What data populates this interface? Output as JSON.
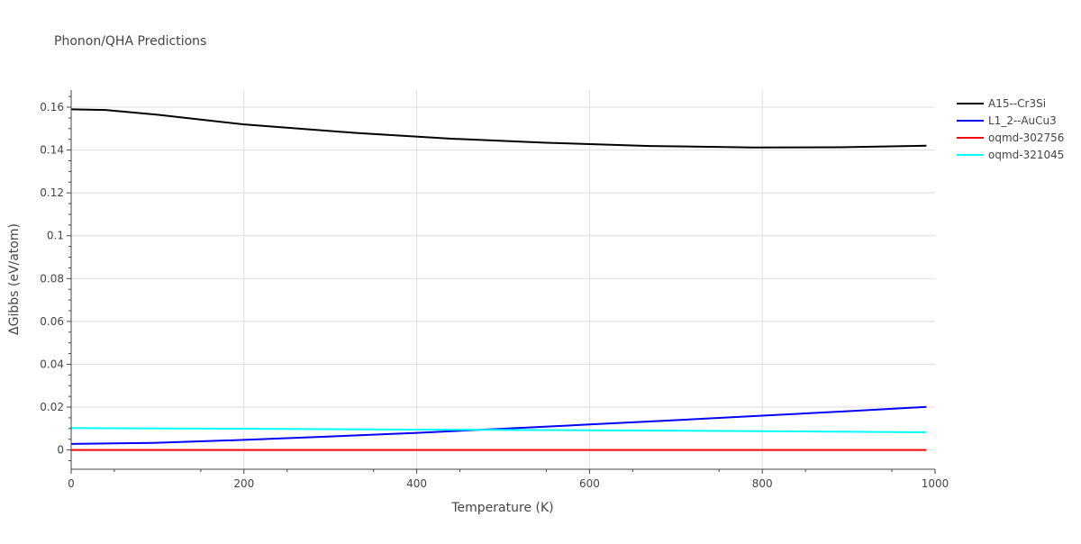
{
  "chart_data": {
    "type": "line",
    "title": "Phonon/QHA Predictions",
    "xlabel": "Temperature (K)",
    "ylabel": "ΔGibbs (eV/atom)",
    "xlim": [
      0,
      1000
    ],
    "ylim": [
      -0.009,
      0.168
    ],
    "x_ticks": [
      0,
      200,
      400,
      600,
      800,
      1000
    ],
    "x_tick_labels": [
      "0",
      "200",
      "400",
      "600",
      "800",
      "1000"
    ],
    "y_ticks": [
      0,
      0.02,
      0.04,
      0.06,
      0.08,
      0.1,
      0.12,
      0.14,
      0.16
    ],
    "y_tick_labels": [
      "0",
      "0.02",
      "0.04",
      "0.06",
      "0.08",
      "0.1",
      "0.12",
      "0.14",
      "0.16"
    ],
    "grid": true,
    "legend_position": "top-right",
    "series": [
      {
        "name": "A15--Cr3Si",
        "color": "#000000",
        "x": [
          0,
          40,
          100,
          200,
          330,
          440,
          550,
          670,
          790,
          890,
          990
        ],
        "y": [
          0.159,
          0.1587,
          0.1565,
          0.152,
          0.148,
          0.1453,
          0.1434,
          0.1419,
          0.1412,
          0.1413,
          0.142
        ]
      },
      {
        "name": "L1_2--AuCu3",
        "color": "#0000ff",
        "x": [
          0,
          95,
          200,
          300,
          400,
          500,
          600,
          700,
          800,
          900,
          990
        ],
        "y": [
          0.0028,
          0.0033,
          0.0047,
          0.0063,
          0.008,
          0.0099,
          0.0119,
          0.0139,
          0.016,
          0.0181,
          0.0201
        ]
      },
      {
        "name": "oqmd-302756",
        "color": "#ff0000",
        "x": [
          0,
          990
        ],
        "y": [
          0.0,
          0.0
        ]
      },
      {
        "name": "oqmd-321045",
        "color": "#00ffff",
        "x": [
          0,
          200,
          400,
          600,
          800,
          990
        ],
        "y": [
          0.0102,
          0.0099,
          0.0095,
          0.0092,
          0.0088,
          0.0083
        ]
      }
    ]
  }
}
